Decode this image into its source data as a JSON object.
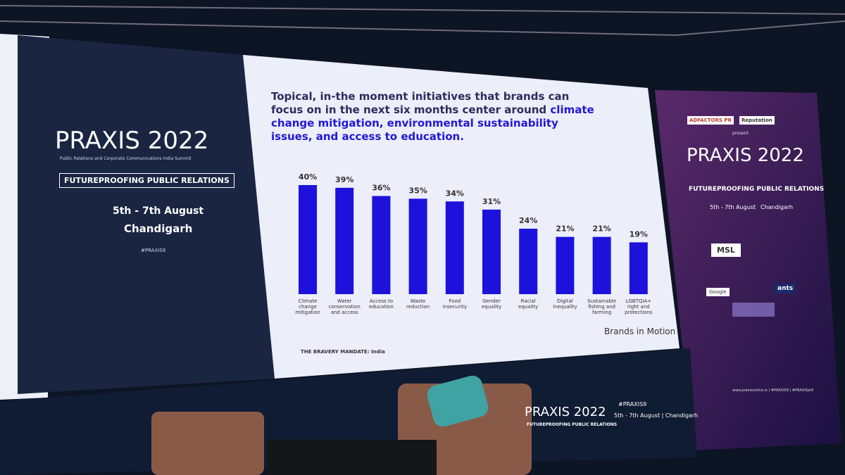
{
  "chart_data": {
    "type": "bar",
    "title": [
      "Topical, in-the moment initiatives that brands can focus on in the next six months center around",
      "climate change mitigation, environmental sustainability issues, and access to education."
    ],
    "categories": [
      "Climate change mitigation",
      "Water conservation and access",
      "Access to education",
      "Waste reduction",
      "Food insecurity",
      "Gender equality",
      "Racial equality",
      "Digital inequality",
      "Sustainable fishing and farming",
      "LGBTQIA+ right and protections"
    ],
    "values": [
      40,
      39,
      36,
      35,
      34,
      31,
      24,
      21,
      21,
      19
    ],
    "value_labels": [
      "40%",
      "39%",
      "36%",
      "35%",
      "34%",
      "31%",
      "24%",
      "21%",
      "21%",
      "19%"
    ],
    "color": "#1c12dc",
    "source": "THE BRAVERY MANDATE: India",
    "brand": "Brands in Motion"
  },
  "left_panel": {
    "logo": "PRAXIS 2022",
    "tagline": "Public Relations and Corporate Communications India Summit",
    "theme": "FUTUREPROOFING PUBLIC RELATIONS",
    "dates": "5th - 7th August",
    "city": "Chandigarh",
    "hashtag": "#PRAXIS9"
  },
  "right_panel": {
    "presenters": [
      "ADFACTORS PR",
      "Reputation"
    ],
    "present": "present",
    "logo": "PRAXIS 2022",
    "theme": "FUTUREPROOFING PUBLIC RELATIONS",
    "dates": "5th - 7th August",
    "city": "Chandigarh",
    "sponsors": [
      "MSL",
      "Google",
      "ants"
    ],
    "footer": "www.praxisonline.in | #PRAXIS9 | #PRAXISat9"
  },
  "stage": {
    "logo": "PRAXIS 2022",
    "theme": "FUTUREPROOFING PUBLIC RELATIONS",
    "hashtag": "#PRAXIS9",
    "dates": "5th - 7th August | Chandigarh"
  }
}
